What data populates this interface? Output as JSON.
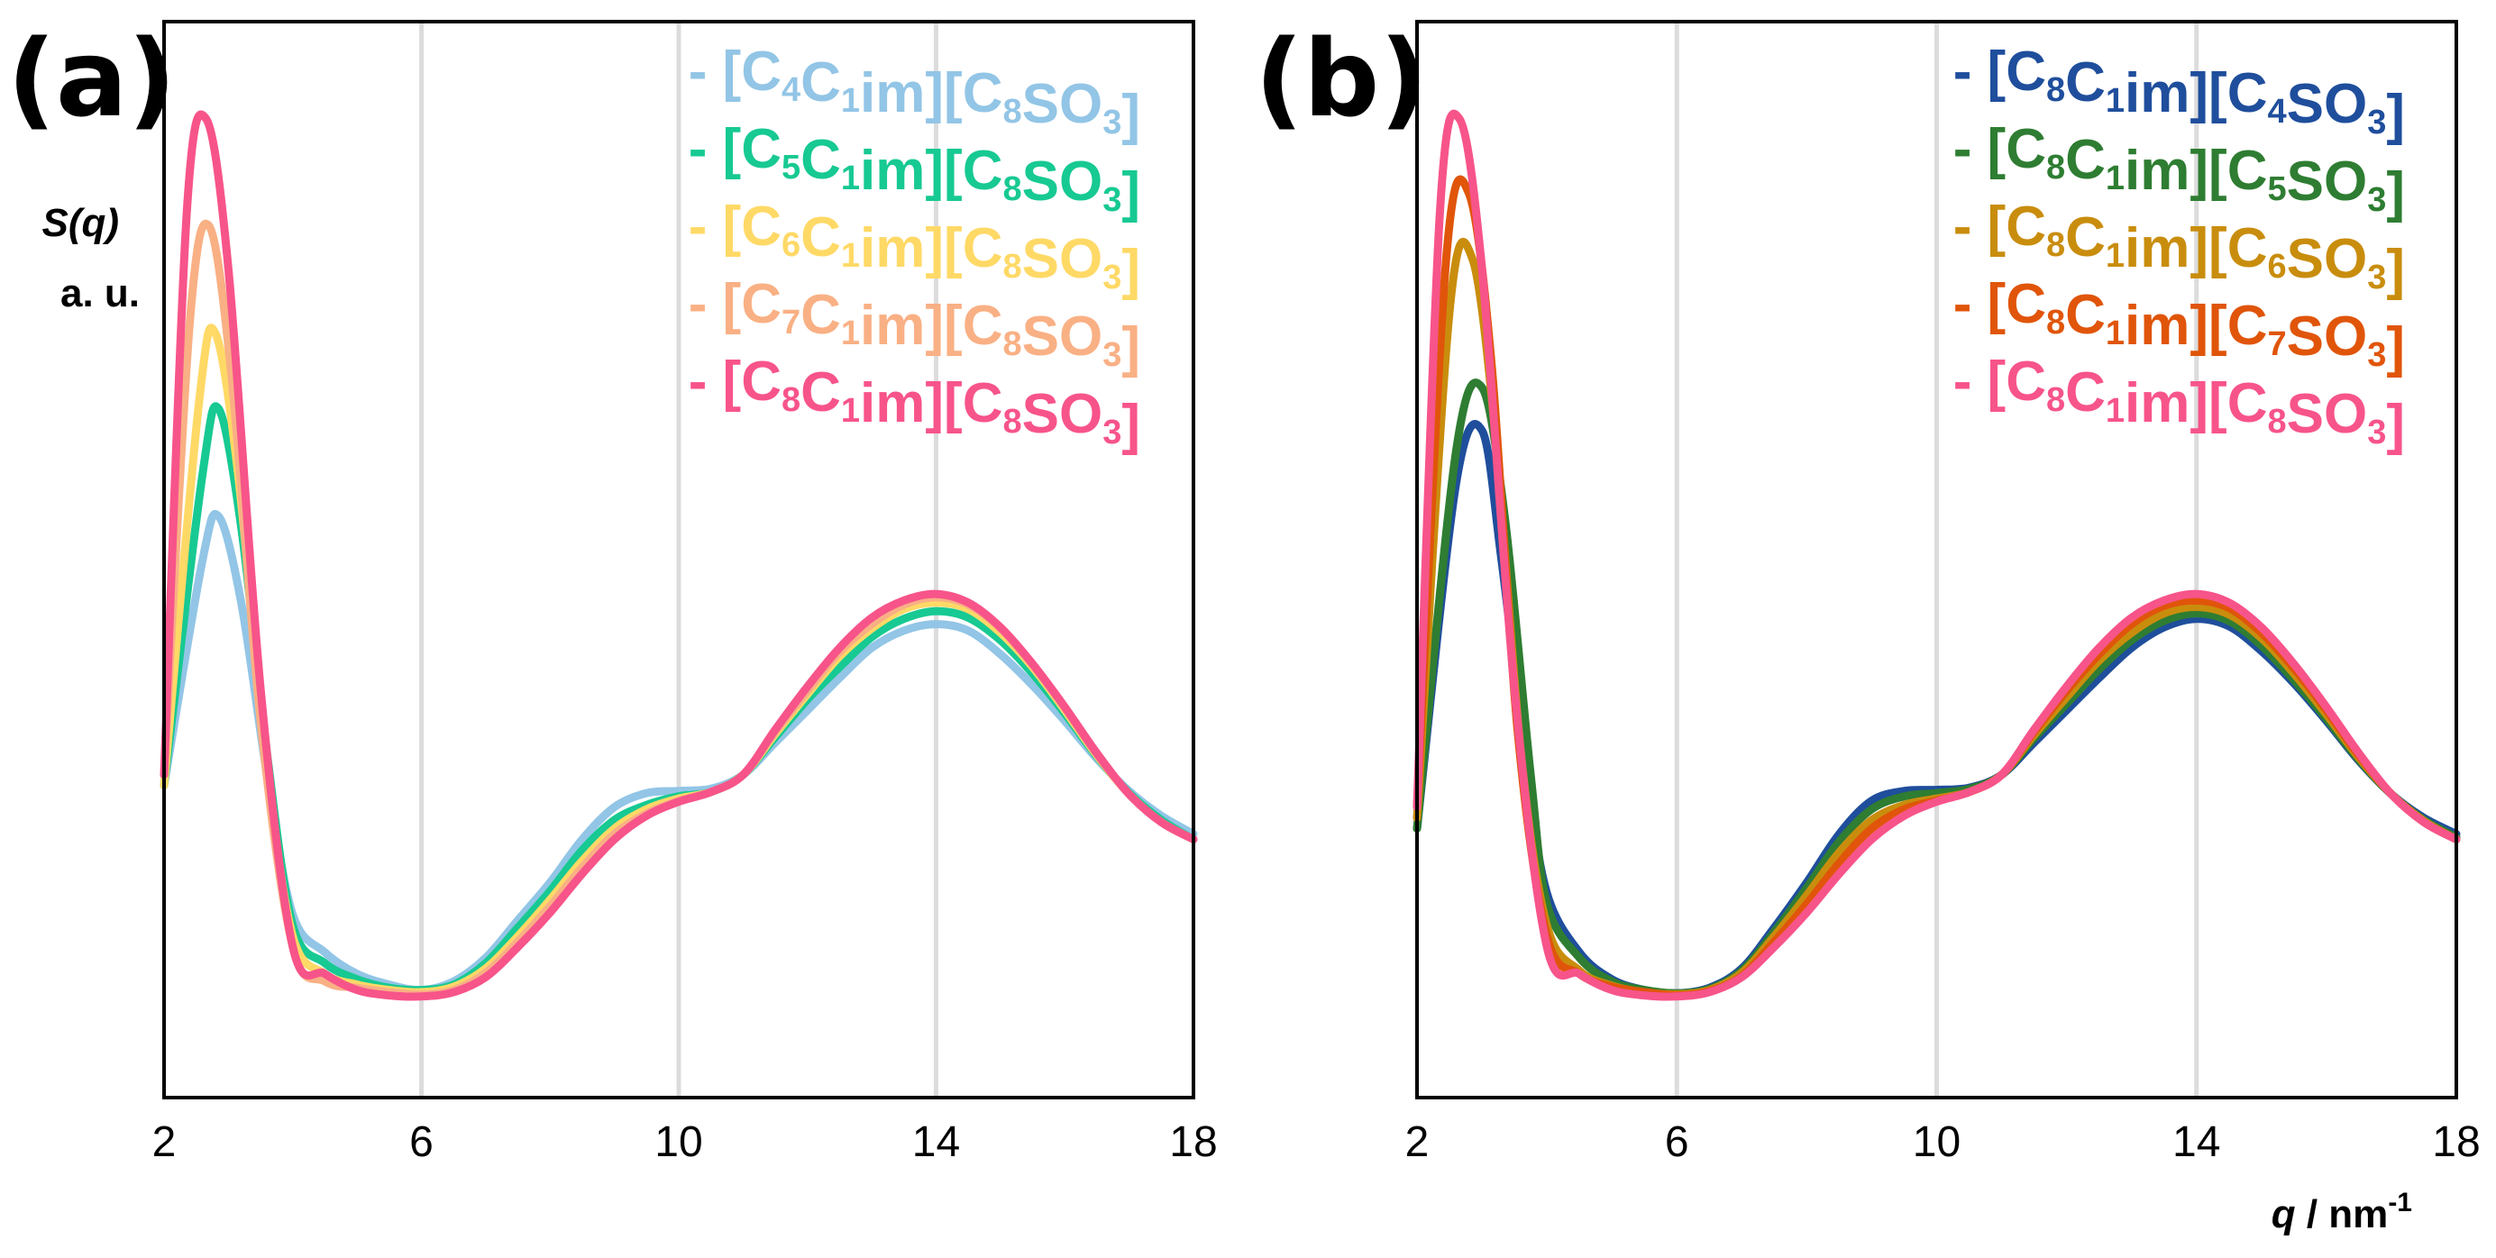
{
  "panel_labels": [
    "(a)",
    "(b)"
  ],
  "y_title_line1": "S(q)",
  "y_title_line2": "a. u.",
  "x_title_main": "q",
  "x_title_unit": " / nm",
  "x_title_sup": "-1",
  "chart_data": [
    {
      "type": "line",
      "panel": "(a)",
      "x_ticks": [
        2,
        6,
        10,
        14,
        18
      ],
      "xlim": [
        2,
        18
      ],
      "ylim": [
        0,
        1
      ],
      "y_ticks_shown": false,
      "grid": "vertical",
      "legend": "top-right",
      "series": [
        {
          "name": "- [C4C1im][C8SO3]",
          "legend": {
            "prefix": "- [C",
            "cat": "4",
            "anion": "8"
          },
          "color": "#92c5e6",
          "x": [
            2.0,
            2.6,
            2.85,
            3.2,
            3.6,
            4.0,
            4.5,
            5.0,
            5.5,
            6.0,
            6.5,
            7.0,
            7.5,
            8.0,
            8.5,
            9.0,
            9.5,
            10.0,
            10.5,
            11.0,
            11.5,
            12.0,
            12.5,
            13.0,
            13.5,
            14.0,
            14.5,
            15.0,
            15.5,
            16.0,
            16.5,
            17.0,
            17.5,
            18.0
          ],
          "y": [
            0.29,
            0.5,
            0.54,
            0.46,
            0.3,
            0.17,
            0.135,
            0.115,
            0.105,
            0.1,
            0.108,
            0.13,
            0.165,
            0.2,
            0.24,
            0.27,
            0.283,
            0.285,
            0.287,
            0.3,
            0.33,
            0.36,
            0.39,
            0.418,
            0.434,
            0.44,
            0.434,
            0.412,
            0.383,
            0.35,
            0.315,
            0.285,
            0.262,
            0.245
          ]
        },
        {
          "name": "- [C5C1im][C8SO3]",
          "legend": {
            "prefix": "- [C",
            "cat": "5",
            "anion": "8"
          },
          "color": "#17c992",
          "x": [
            2.0,
            2.6,
            2.85,
            3.2,
            3.6,
            4.0,
            4.5,
            5.0,
            5.5,
            6.0,
            6.5,
            7.0,
            7.5,
            8.0,
            8.5,
            9.0,
            9.5,
            10.0,
            10.5,
            11.0,
            11.5,
            12.0,
            12.5,
            13.0,
            13.5,
            14.0,
            14.5,
            15.0,
            15.5,
            16.0,
            16.5,
            17.0,
            17.5,
            18.0
          ],
          "y": [
            0.29,
            0.58,
            0.64,
            0.53,
            0.32,
            0.16,
            0.125,
            0.11,
            0.102,
            0.1,
            0.105,
            0.125,
            0.158,
            0.192,
            0.23,
            0.258,
            0.272,
            0.28,
            0.284,
            0.3,
            0.335,
            0.37,
            0.4,
            0.428,
            0.445,
            0.452,
            0.446,
            0.425,
            0.394,
            0.357,
            0.317,
            0.283,
            0.258,
            0.24
          ]
        },
        {
          "name": "- [C6C1im][C8SO3]",
          "legend": {
            "prefix": "- [C",
            "cat": "6",
            "anion": "8"
          },
          "color": "#ffd966",
          "x": [
            2.0,
            2.55,
            2.8,
            3.15,
            3.6,
            4.0,
            4.5,
            5.0,
            5.5,
            6.0,
            6.5,
            7.0,
            7.5,
            8.0,
            8.5,
            9.0,
            9.5,
            10.0,
            10.5,
            11.0,
            11.5,
            12.0,
            12.5,
            13.0,
            13.5,
            14.0,
            14.5,
            15.0,
            15.5,
            16.0,
            16.5,
            17.0,
            17.5,
            18.0
          ],
          "y": [
            0.29,
            0.65,
            0.71,
            0.58,
            0.31,
            0.15,
            0.115,
            0.105,
            0.1,
            0.098,
            0.103,
            0.12,
            0.15,
            0.184,
            0.22,
            0.25,
            0.268,
            0.278,
            0.284,
            0.3,
            0.338,
            0.375,
            0.41,
            0.436,
            0.454,
            0.46,
            0.454,
            0.432,
            0.4,
            0.36,
            0.318,
            0.282,
            0.256,
            0.24
          ]
        },
        {
          "name": "- [C7C1im][C8SO3]",
          "legend": {
            "prefix": "- [C",
            "cat": "7",
            "anion": "8"
          },
          "color": "#f9b084",
          "x": [
            2.0,
            2.4,
            2.7,
            3.05,
            3.5,
            4.0,
            4.5,
            5.0,
            5.5,
            6.0,
            6.5,
            7.0,
            7.5,
            8.0,
            8.5,
            9.0,
            9.5,
            10.0,
            10.5,
            11.0,
            11.5,
            12.0,
            12.5,
            13.0,
            13.5,
            14.0,
            14.5,
            15.0,
            15.5,
            16.0,
            16.5,
            17.0,
            17.5,
            18.0
          ],
          "y": [
            0.3,
            0.72,
            0.81,
            0.67,
            0.35,
            0.14,
            0.108,
            0.102,
            0.098,
            0.096,
            0.1,
            0.116,
            0.145,
            0.178,
            0.214,
            0.245,
            0.264,
            0.276,
            0.284,
            0.3,
            0.34,
            0.378,
            0.414,
            0.44,
            0.458,
            0.465,
            0.458,
            0.436,
            0.402,
            0.362,
            0.319,
            0.282,
            0.256,
            0.24
          ]
        },
        {
          "name": "- [C8C1im][C8SO3]",
          "legend": {
            "prefix": "- [C",
            "cat": "8",
            "anion": "8"
          },
          "color": "#f7548a",
          "x": [
            2.0,
            2.35,
            2.65,
            3.0,
            3.5,
            4.0,
            4.5,
            5.0,
            5.5,
            6.0,
            6.5,
            7.0,
            7.5,
            8.0,
            8.5,
            9.0,
            9.5,
            10.0,
            10.5,
            11.0,
            11.5,
            12.0,
            12.5,
            13.0,
            13.5,
            14.0,
            14.5,
            15.0,
            15.5,
            16.0,
            16.5,
            17.0,
            17.5,
            18.0
          ],
          "y": [
            0.3,
            0.82,
            0.91,
            0.77,
            0.38,
            0.14,
            0.115,
            0.1,
            0.095,
            0.094,
            0.098,
            0.112,
            0.14,
            0.172,
            0.208,
            0.24,
            0.262,
            0.275,
            0.284,
            0.3,
            0.342,
            0.382,
            0.418,
            0.446,
            0.462,
            0.468,
            0.46,
            0.437,
            0.403,
            0.363,
            0.32,
            0.282,
            0.256,
            0.24
          ]
        }
      ]
    },
    {
      "type": "line",
      "panel": "(b)",
      "x_ticks": [
        2,
        6,
        10,
        14,
        18
      ],
      "xlim": [
        2,
        18
      ],
      "ylim": [
        0,
        1
      ],
      "y_ticks_shown": false,
      "grid": "vertical",
      "legend": "top-right",
      "series": [
        {
          "name": "- [C8C1im][C4SO3]",
          "legend": {
            "prefix": "- [C",
            "cat": "8",
            "anion": "4"
          },
          "color": "#1f4e9c",
          "x": [
            2.0,
            2.6,
            3.0,
            3.3,
            3.7,
            4.0,
            4.5,
            5.0,
            5.5,
            6.0,
            6.5,
            7.0,
            7.5,
            8.0,
            8.5,
            9.0,
            9.5,
            10.0,
            10.5,
            11.0,
            11.5,
            12.0,
            12.5,
            13.0,
            13.5,
            14.0,
            14.5,
            15.0,
            15.5,
            16.0,
            16.5,
            17.0,
            17.5,
            18.0
          ],
          "y": [
            0.25,
            0.57,
            0.62,
            0.5,
            0.3,
            0.19,
            0.135,
            0.11,
            0.1,
            0.097,
            0.102,
            0.12,
            0.158,
            0.2,
            0.245,
            0.276,
            0.285,
            0.286,
            0.288,
            0.3,
            0.33,
            0.36,
            0.39,
            0.418,
            0.437,
            0.445,
            0.438,
            0.415,
            0.385,
            0.35,
            0.313,
            0.282,
            0.26,
            0.245
          ]
        },
        {
          "name": "- [C8C1im][C5SO3]",
          "legend": {
            "prefix": "- [C",
            "cat": "8",
            "anion": "5"
          },
          "color": "#2e7d32",
          "x": [
            2.0,
            2.6,
            3.0,
            3.35,
            3.75,
            4.0,
            4.5,
            5.0,
            5.5,
            6.0,
            6.5,
            7.0,
            7.5,
            8.0,
            8.5,
            9.0,
            9.5,
            10.0,
            10.5,
            11.0,
            11.5,
            12.0,
            12.5,
            13.0,
            13.5,
            14.0,
            14.5,
            15.0,
            15.5,
            16.0,
            16.5,
            17.0,
            17.5,
            18.0
          ],
          "y": [
            0.25,
            0.6,
            0.66,
            0.54,
            0.3,
            0.18,
            0.13,
            0.108,
            0.1,
            0.097,
            0.101,
            0.118,
            0.154,
            0.195,
            0.238,
            0.268,
            0.28,
            0.283,
            0.287,
            0.3,
            0.334,
            0.366,
            0.398,
            0.425,
            0.443,
            0.45,
            0.443,
            0.42,
            0.388,
            0.352,
            0.314,
            0.282,
            0.258,
            0.242
          ]
        },
        {
          "name": "- [C8C1im][C6SO3]",
          "legend": {
            "prefix": "- [C",
            "cat": "8",
            "anion": "6"
          },
          "color": "#c98d0d",
          "x": [
            2.0,
            2.5,
            2.85,
            3.2,
            3.6,
            4.0,
            4.5,
            5.0,
            5.5,
            6.0,
            6.5,
            7.0,
            7.5,
            8.0,
            8.5,
            9.0,
            9.5,
            10.0,
            10.5,
            11.0,
            11.5,
            12.0,
            12.5,
            13.0,
            13.5,
            14.0,
            14.5,
            15.0,
            15.5,
            16.0,
            16.5,
            17.0,
            17.5,
            18.0
          ],
          "y": [
            0.26,
            0.73,
            0.78,
            0.62,
            0.32,
            0.16,
            0.118,
            0.104,
            0.098,
            0.096,
            0.1,
            0.116,
            0.15,
            0.188,
            0.228,
            0.258,
            0.272,
            0.278,
            0.284,
            0.3,
            0.337,
            0.372,
            0.406,
            0.432,
            0.45,
            0.456,
            0.449,
            0.427,
            0.394,
            0.356,
            0.316,
            0.282,
            0.257,
            0.24
          ]
        },
        {
          "name": "- [C8C1im][C7SO3]",
          "legend": {
            "prefix": "- [C",
            "cat": "8",
            "anion": "7"
          },
          "color": "#e0550a",
          "x": [
            2.0,
            2.45,
            2.8,
            3.15,
            3.55,
            4.0,
            4.5,
            5.0,
            5.5,
            6.0,
            6.5,
            7.0,
            7.5,
            8.0,
            8.5,
            9.0,
            9.5,
            10.0,
            10.5,
            11.0,
            11.5,
            12.0,
            12.5,
            13.0,
            13.5,
            14.0,
            14.5,
            15.0,
            15.5,
            16.0,
            16.5,
            17.0,
            17.5,
            18.0
          ],
          "y": [
            0.27,
            0.78,
            0.84,
            0.68,
            0.34,
            0.15,
            0.115,
            0.103,
            0.098,
            0.095,
            0.099,
            0.113,
            0.145,
            0.18,
            0.218,
            0.25,
            0.268,
            0.276,
            0.284,
            0.3,
            0.34,
            0.378,
            0.412,
            0.44,
            0.457,
            0.462,
            0.455,
            0.432,
            0.399,
            0.36,
            0.318,
            0.282,
            0.256,
            0.24
          ]
        },
        {
          "name": "- [C8C1im][C8SO3]",
          "legend": {
            "prefix": "- [C",
            "cat": "8",
            "anion": "8"
          },
          "color": "#f7548a",
          "x": [
            2.0,
            2.35,
            2.65,
            3.0,
            3.5,
            4.0,
            4.5,
            5.0,
            5.5,
            6.0,
            6.5,
            7.0,
            7.5,
            8.0,
            8.5,
            9.0,
            9.5,
            10.0,
            10.5,
            11.0,
            11.5,
            12.0,
            12.5,
            13.0,
            13.5,
            14.0,
            14.5,
            15.0,
            15.5,
            16.0,
            16.5,
            17.0,
            17.5,
            18.0
          ],
          "y": [
            0.27,
            0.82,
            0.91,
            0.77,
            0.38,
            0.14,
            0.115,
            0.1,
            0.095,
            0.094,
            0.098,
            0.112,
            0.14,
            0.172,
            0.208,
            0.24,
            0.262,
            0.275,
            0.284,
            0.3,
            0.342,
            0.382,
            0.418,
            0.446,
            0.462,
            0.468,
            0.46,
            0.437,
            0.403,
            0.363,
            0.32,
            0.282,
            0.256,
            0.24
          ]
        }
      ]
    }
  ]
}
